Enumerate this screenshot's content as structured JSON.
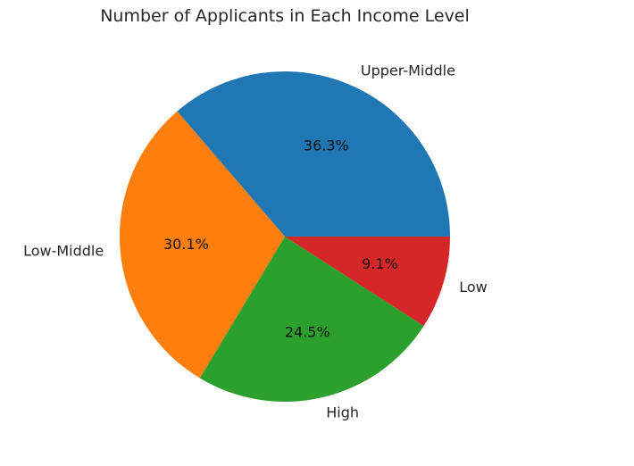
{
  "chart_data": {
    "type": "pie",
    "title": "Number of Applicants in Each Income Level",
    "slices": [
      {
        "label": "Upper-Middle",
        "value": 36.3,
        "pct_label": "36.3%",
        "color": "#1f77b4"
      },
      {
        "label": "Low-Middle",
        "value": 30.1,
        "pct_label": "30.1%",
        "color": "#ff7f0e"
      },
      {
        "label": "High",
        "value": 24.5,
        "pct_label": "24.5%",
        "color": "#2ca02c"
      },
      {
        "label": "Low",
        "value": 9.1,
        "pct_label": "9.1%",
        "color": "#d62728"
      }
    ],
    "start_angle_deg": 0,
    "direction": "counterclockwise"
  }
}
